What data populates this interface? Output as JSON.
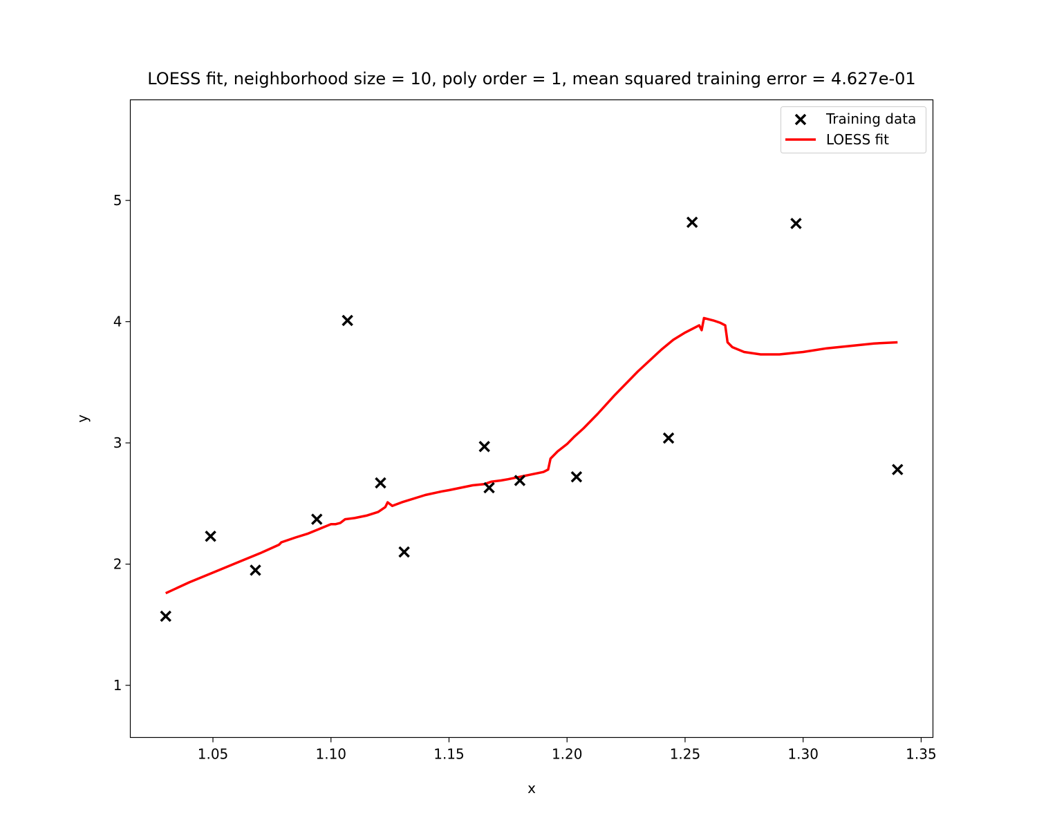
{
  "chart_data": {
    "type": "scatter",
    "title": "LOESS fit, neighborhood size = 10, poly order = 1, mean squared training error = 4.627e-01",
    "xlabel": "x",
    "ylabel": "y",
    "xlim": [
      1.015,
      1.355
    ],
    "ylim": [
      0.57,
      5.83
    ],
    "x_ticks": [
      1.05,
      1.1,
      1.15,
      1.2,
      1.25,
      1.3,
      1.35
    ],
    "x_tick_labels": [
      "1.05",
      "1.10",
      "1.15",
      "1.20",
      "1.25",
      "1.30",
      "1.35"
    ],
    "y_ticks": [
      1,
      2,
      3,
      4,
      5
    ],
    "y_tick_labels": [
      "1",
      "2",
      "3",
      "4",
      "5"
    ],
    "grid": false,
    "legend_position": "top-right",
    "series": [
      {
        "name": "Training data",
        "kind": "scatter",
        "marker": "x",
        "color": "#000000",
        "x": [
          1.03,
          1.049,
          1.068,
          1.094,
          1.107,
          1.121,
          1.131,
          1.165,
          1.167,
          1.18,
          1.204,
          1.243,
          1.253,
          1.297,
          1.34
        ],
        "y": [
          1.57,
          2.23,
          1.95,
          2.37,
          4.01,
          2.67,
          2.1,
          2.97,
          2.63,
          2.69,
          2.72,
          3.04,
          4.82,
          4.81,
          2.78
        ]
      },
      {
        "name": "LOESS fit",
        "kind": "line",
        "color": "#ff0000",
        "x": [
          1.03,
          1.04,
          1.05,
          1.06,
          1.07,
          1.078,
          1.079,
          1.085,
          1.09,
          1.095,
          1.1,
          1.102,
          1.104,
          1.106,
          1.11,
          1.115,
          1.12,
          1.123,
          1.124,
          1.126,
          1.13,
          1.14,
          1.147,
          1.15,
          1.155,
          1.16,
          1.165,
          1.168,
          1.172,
          1.175,
          1.18,
          1.185,
          1.19,
          1.192,
          1.193,
          1.196,
          1.2,
          1.203,
          1.207,
          1.213,
          1.22,
          1.23,
          1.24,
          1.245,
          1.25,
          1.254,
          1.256,
          1.257,
          1.258,
          1.262,
          1.265,
          1.267,
          1.268,
          1.27,
          1.275,
          1.282,
          1.29,
          1.3,
          1.31,
          1.32,
          1.33,
          1.34
        ],
        "y": [
          1.76,
          1.85,
          1.93,
          2.01,
          2.09,
          2.16,
          2.18,
          2.22,
          2.25,
          2.29,
          2.33,
          2.33,
          2.34,
          2.37,
          2.38,
          2.4,
          2.43,
          2.47,
          2.51,
          2.48,
          2.51,
          2.57,
          2.6,
          2.61,
          2.63,
          2.65,
          2.66,
          2.68,
          2.69,
          2.7,
          2.72,
          2.74,
          2.76,
          2.78,
          2.87,
          2.93,
          2.99,
          3.05,
          3.12,
          3.24,
          3.39,
          3.59,
          3.77,
          3.85,
          3.91,
          3.95,
          3.97,
          3.93,
          4.03,
          4.01,
          3.99,
          3.97,
          3.83,
          3.79,
          3.75,
          3.73,
          3.73,
          3.75,
          3.78,
          3.8,
          3.82,
          3.83
        ]
      }
    ]
  }
}
